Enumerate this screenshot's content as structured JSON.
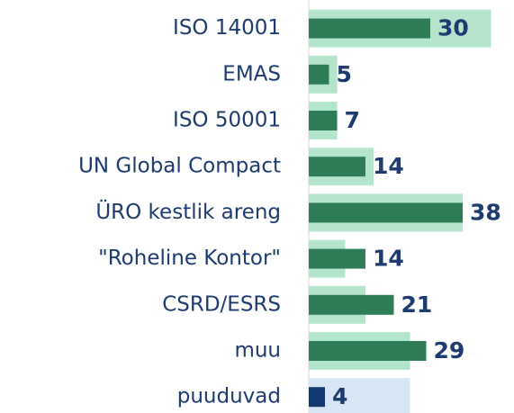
{
  "chart_data": {
    "type": "bar",
    "orientation": "horizontal",
    "categories": [
      "ISO 14001",
      "EMAS",
      "ISO 50001",
      "UN Global Compact",
      "ÜRO kestlik areng",
      "\"Roheline Kontor\"",
      "CSRD/ESRS",
      "muu",
      "puuduvad"
    ],
    "series": [
      {
        "colors": [
          "#b5e4cd",
          "#b5e4cd",
          "#b5e4cd",
          "#b5e4cd",
          "#b5e4cd",
          "#b5e4cd",
          "#b5e4cd",
          "#b5e4cd",
          "#d6e6f6"
        ],
        "values": [
          45,
          7,
          7,
          16,
          38,
          9,
          14,
          25,
          25
        ]
      },
      {
        "colors": [
          "#2f7d57",
          "#2f7d57",
          "#2f7d57",
          "#2f7d57",
          "#2f7d57",
          "#2f7d57",
          "#2f7d57",
          "#2f7d57",
          "#123a72"
        ],
        "values": [
          30,
          5,
          7,
          14,
          38,
          14,
          21,
          29,
          4
        ]
      }
    ],
    "xlim": [
      0,
      50
    ]
  }
}
